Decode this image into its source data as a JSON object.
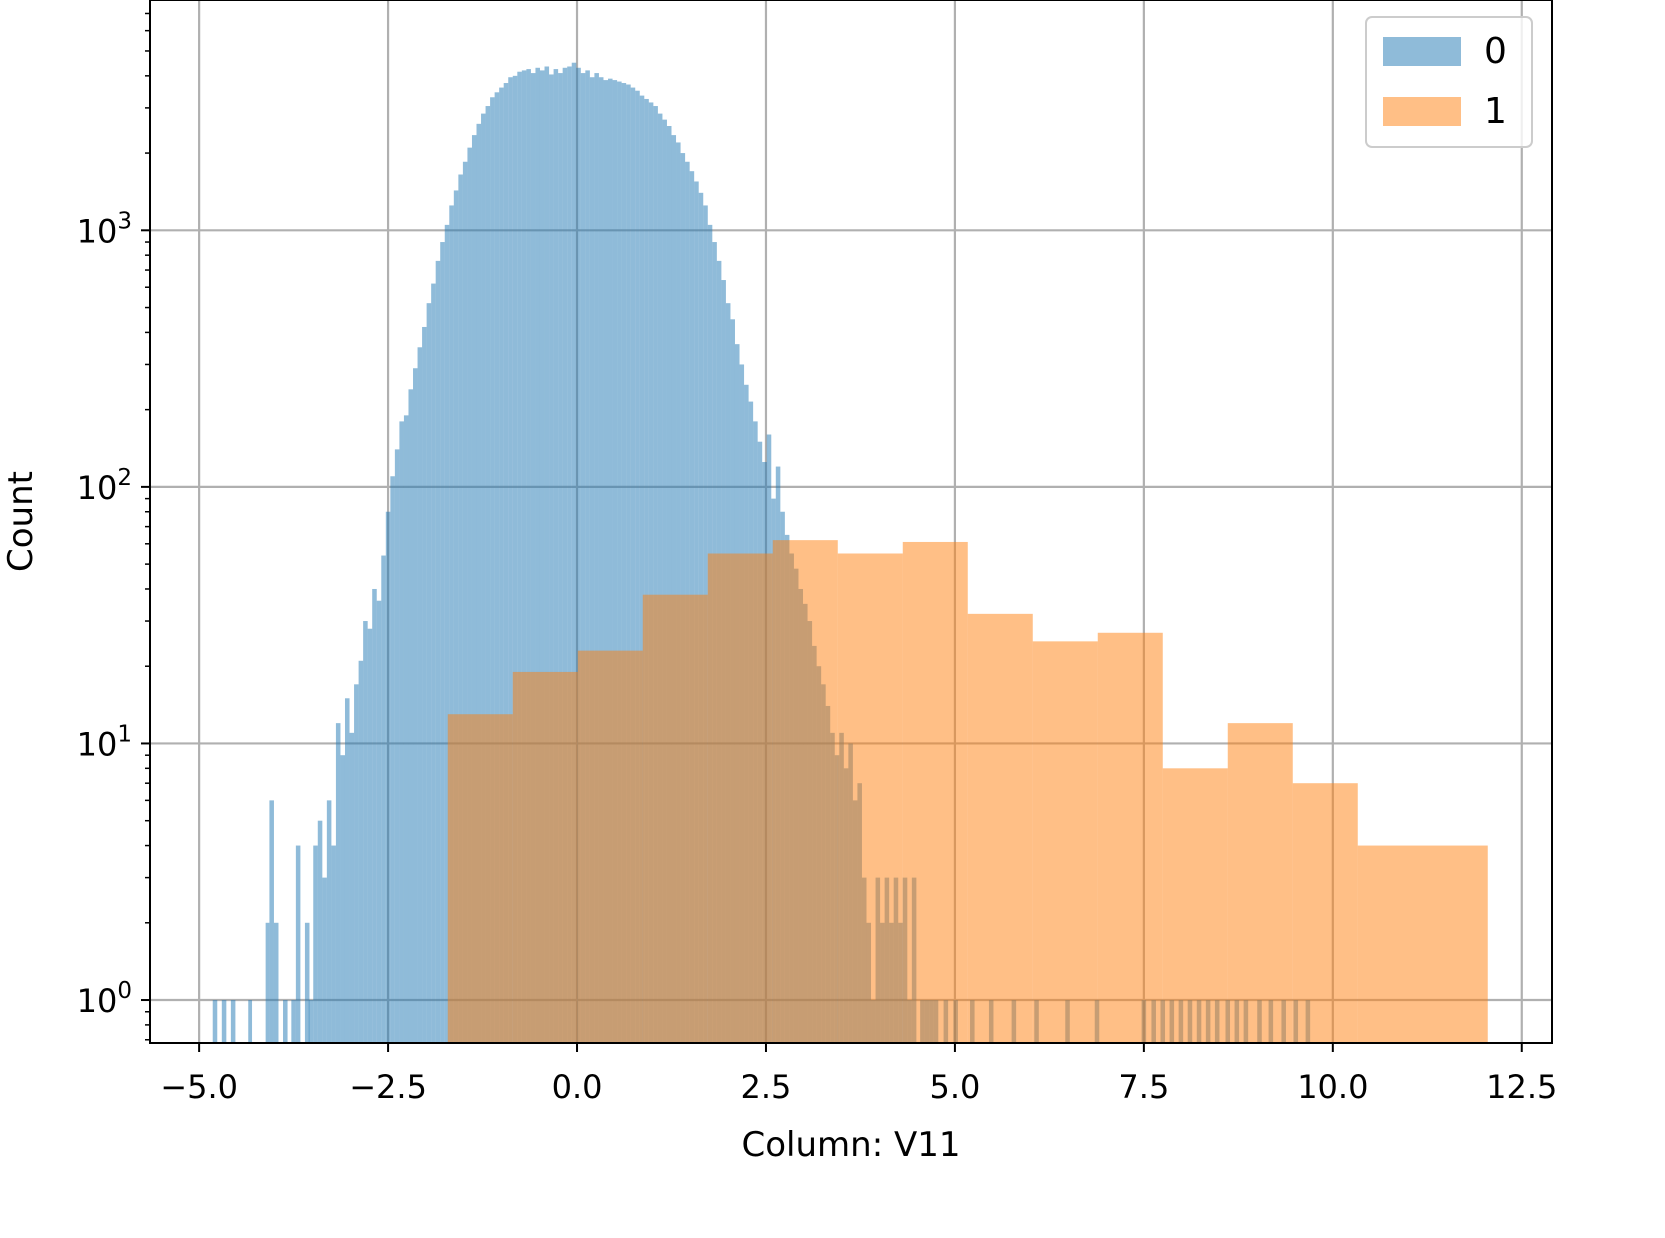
{
  "chart_data": {
    "type": "histogram",
    "xlabel": "Column: V11",
    "ylabel": "Count",
    "xlim": [
      -5.65,
      12.9
    ],
    "ylim": [
      0.68,
      7900
    ],
    "yscale": "log",
    "grid": true,
    "legend_position": "top-right",
    "x_ticks": [
      -5.0,
      -2.5,
      0.0,
      2.5,
      5.0,
      7.5,
      10.0,
      12.5
    ],
    "x_tick_labels": [
      "−5.0",
      "−2.5",
      "0.0",
      "2.5",
      "5.0",
      "7.5",
      "10.0",
      "12.5"
    ],
    "y_ticks": [
      1,
      10,
      100,
      1000
    ],
    "y_tick_labels": [
      {
        "base": "10",
        "exp": "0"
      },
      {
        "base": "10",
        "exp": "1"
      },
      {
        "base": "10",
        "exp": "2"
      },
      {
        "base": "10",
        "exp": "3"
      }
    ],
    "series": [
      {
        "name": "0",
        "color": "#1f77b4",
        "opacity": 0.5,
        "bins": [
          [
            -4.82,
            -4.76,
            1
          ],
          [
            -4.7,
            -4.64,
            1
          ],
          [
            -4.58,
            -4.52,
            1
          ],
          [
            -4.35,
            -4.3,
            1
          ],
          [
            -4.12,
            -4.07,
            2
          ],
          [
            -4.07,
            -4.01,
            6
          ],
          [
            -4.01,
            -3.95,
            2
          ],
          [
            -3.89,
            -3.83,
            1
          ],
          [
            -3.78,
            -3.72,
            1
          ],
          [
            -3.72,
            -3.66,
            4
          ],
          [
            -3.6,
            -3.54,
            2
          ],
          [
            -3.55,
            -3.49,
            1
          ],
          [
            -3.49,
            -3.43,
            4
          ],
          [
            -3.43,
            -3.37,
            5
          ],
          [
            -3.37,
            -3.31,
            3
          ],
          [
            -3.31,
            -3.25,
            6
          ],
          [
            -3.25,
            -3.19,
            4
          ],
          [
            -3.19,
            -3.13,
            12
          ],
          [
            -3.13,
            -3.07,
            9
          ],
          [
            -3.07,
            -3.01,
            15
          ],
          [
            -3.01,
            -2.95,
            11
          ],
          [
            -2.95,
            -2.89,
            17
          ],
          [
            -2.89,
            -2.83,
            21
          ],
          [
            -2.83,
            -2.77,
            30
          ],
          [
            -2.77,
            -2.71,
            28
          ],
          [
            -2.71,
            -2.65,
            40
          ],
          [
            -2.65,
            -2.59,
            36
          ],
          [
            -2.59,
            -2.53,
            54
          ],
          [
            -2.53,
            -2.47,
            80
          ],
          [
            -2.47,
            -2.41,
            110
          ],
          [
            -2.41,
            -2.35,
            140
          ],
          [
            -2.35,
            -2.29,
            180
          ],
          [
            -2.29,
            -2.23,
            190
          ],
          [
            -2.23,
            -2.17,
            240
          ],
          [
            -2.17,
            -2.11,
            290
          ],
          [
            -2.11,
            -2.05,
            350
          ],
          [
            -2.05,
            -1.99,
            420
          ],
          [
            -1.99,
            -1.93,
            520
          ],
          [
            -1.93,
            -1.87,
            620
          ],
          [
            -1.87,
            -1.81,
            760
          ],
          [
            -1.81,
            -1.75,
            900
          ],
          [
            -1.75,
            -1.69,
            1050
          ],
          [
            -1.69,
            -1.63,
            1250
          ],
          [
            -1.63,
            -1.57,
            1430
          ],
          [
            -1.57,
            -1.51,
            1650
          ],
          [
            -1.51,
            -1.45,
            1850
          ],
          [
            -1.45,
            -1.39,
            2100
          ],
          [
            -1.39,
            -1.33,
            2350
          ],
          [
            -1.33,
            -1.27,
            2600
          ],
          [
            -1.27,
            -1.21,
            2850
          ],
          [
            -1.21,
            -1.15,
            3050
          ],
          [
            -1.15,
            -1.09,
            3300
          ],
          [
            -1.09,
            -1.03,
            3450
          ],
          [
            -1.03,
            -0.97,
            3600
          ],
          [
            -0.97,
            -0.91,
            3750
          ],
          [
            -0.91,
            -0.85,
            3950
          ],
          [
            -0.85,
            -0.79,
            4000
          ],
          [
            -0.79,
            -0.73,
            4150
          ],
          [
            -0.73,
            -0.67,
            4200
          ],
          [
            -0.67,
            -0.61,
            4250
          ],
          [
            -0.61,
            -0.55,
            4100
          ],
          [
            -0.55,
            -0.49,
            4300
          ],
          [
            -0.49,
            -0.43,
            4200
          ],
          [
            -0.43,
            -0.37,
            4350
          ],
          [
            -0.37,
            -0.31,
            4050
          ],
          [
            -0.31,
            -0.25,
            4250
          ],
          [
            -0.25,
            -0.19,
            4100
          ],
          [
            -0.19,
            -0.13,
            4300
          ],
          [
            -0.13,
            -0.07,
            4350
          ],
          [
            -0.07,
            -0.01,
            4500
          ],
          [
            -0.01,
            0.05,
            4300
          ],
          [
            0.05,
            0.11,
            4100
          ],
          [
            0.11,
            0.17,
            4200
          ],
          [
            0.17,
            0.23,
            3950
          ],
          [
            0.23,
            0.29,
            4100
          ],
          [
            0.29,
            0.35,
            3950
          ],
          [
            0.35,
            0.41,
            3850
          ],
          [
            0.41,
            0.47,
            3900
          ],
          [
            0.47,
            0.53,
            3850
          ],
          [
            0.53,
            0.59,
            3800
          ],
          [
            0.59,
            0.65,
            3750
          ],
          [
            0.65,
            0.71,
            3700
          ],
          [
            0.71,
            0.77,
            3600
          ],
          [
            0.77,
            0.83,
            3500
          ],
          [
            0.83,
            0.89,
            3350
          ],
          [
            0.89,
            0.95,
            3250
          ],
          [
            0.95,
            1.01,
            3150
          ],
          [
            1.01,
            1.07,
            3050
          ],
          [
            1.07,
            1.13,
            2850
          ],
          [
            1.13,
            1.19,
            2700
          ],
          [
            1.19,
            1.25,
            2550
          ],
          [
            1.25,
            1.31,
            2350
          ],
          [
            1.31,
            1.37,
            2200
          ],
          [
            1.37,
            1.43,
            2000
          ],
          [
            1.43,
            1.49,
            1850
          ],
          [
            1.49,
            1.55,
            1700
          ],
          [
            1.55,
            1.61,
            1550
          ],
          [
            1.61,
            1.67,
            1400
          ],
          [
            1.67,
            1.73,
            1250
          ],
          [
            1.73,
            1.79,
            1050
          ],
          [
            1.79,
            1.85,
            900
          ],
          [
            1.85,
            1.91,
            760
          ],
          [
            1.91,
            1.97,
            640
          ],
          [
            1.97,
            2.03,
            520
          ],
          [
            2.03,
            2.09,
            450
          ],
          [
            2.09,
            2.15,
            360
          ],
          [
            2.15,
            2.21,
            300
          ],
          [
            2.21,
            2.27,
            250
          ],
          [
            2.27,
            2.33,
            215
          ],
          [
            2.33,
            2.39,
            180
          ],
          [
            2.39,
            2.45,
            150
          ],
          [
            2.45,
            2.51,
            125
          ],
          [
            2.51,
            2.57,
            160
          ],
          [
            2.57,
            2.63,
            90
          ],
          [
            2.63,
            2.69,
            120
          ],
          [
            2.69,
            2.75,
            80
          ],
          [
            2.75,
            2.81,
            65
          ],
          [
            2.81,
            2.87,
            55
          ],
          [
            2.87,
            2.93,
            48
          ],
          [
            2.93,
            2.99,
            40
          ],
          [
            2.99,
            3.05,
            35
          ],
          [
            3.05,
            3.11,
            30
          ],
          [
            3.11,
            3.17,
            24
          ],
          [
            3.17,
            3.23,
            20
          ],
          [
            3.23,
            3.29,
            17
          ],
          [
            3.29,
            3.35,
            14
          ],
          [
            3.35,
            3.41,
            11
          ],
          [
            3.41,
            3.47,
            9
          ],
          [
            3.47,
            3.53,
            11
          ],
          [
            3.53,
            3.59,
            8
          ],
          [
            3.59,
            3.65,
            10
          ],
          [
            3.65,
            3.71,
            6
          ],
          [
            3.71,
            3.77,
            7
          ],
          [
            3.77,
            3.83,
            3
          ],
          [
            3.83,
            3.89,
            2
          ],
          [
            3.89,
            3.95,
            1
          ],
          [
            3.95,
            4.01,
            3
          ],
          [
            4.01,
            4.07,
            2
          ],
          [
            4.07,
            4.13,
            3
          ],
          [
            4.13,
            4.19,
            2
          ],
          [
            4.19,
            4.25,
            3
          ],
          [
            4.25,
            4.31,
            2
          ],
          [
            4.31,
            4.37,
            3
          ],
          [
            4.37,
            4.43,
            1
          ],
          [
            4.43,
            4.49,
            3
          ],
          [
            4.54,
            4.6,
            1
          ],
          [
            4.6,
            4.66,
            1
          ],
          [
            4.66,
            4.72,
            1
          ],
          [
            4.72,
            4.78,
            1
          ],
          [
            4.85,
            4.91,
            1
          ],
          [
            4.98,
            5.04,
            1
          ],
          [
            5.2,
            5.26,
            1
          ],
          [
            5.45,
            5.51,
            1
          ],
          [
            5.75,
            5.81,
            1
          ],
          [
            6.05,
            6.11,
            1
          ],
          [
            6.46,
            6.52,
            1
          ],
          [
            6.85,
            6.91,
            1
          ],
          [
            7.47,
            7.53,
            1
          ],
          [
            7.6,
            7.66,
            1
          ],
          [
            7.72,
            7.78,
            1
          ],
          [
            7.84,
            7.9,
            1
          ],
          [
            7.96,
            8.02,
            1
          ],
          [
            8.08,
            8.14,
            1
          ],
          [
            8.2,
            8.26,
            1
          ],
          [
            8.32,
            8.38,
            1
          ],
          [
            8.44,
            8.5,
            1
          ],
          [
            8.58,
            8.64,
            1
          ],
          [
            8.7,
            8.76,
            1
          ],
          [
            8.82,
            8.88,
            1
          ],
          [
            9.0,
            9.06,
            1
          ],
          [
            9.15,
            9.21,
            1
          ],
          [
            9.32,
            9.38,
            1
          ],
          [
            9.48,
            9.54,
            1
          ],
          [
            9.64,
            9.7,
            1
          ]
        ]
      },
      {
        "name": "1",
        "color": "#ff7f0e",
        "opacity": 0.5,
        "bins": [
          [
            -1.71,
            -0.85,
            13
          ],
          [
            -0.85,
            0.01,
            19
          ],
          [
            0.01,
            0.87,
            23
          ],
          [
            0.87,
            1.73,
            38
          ],
          [
            1.73,
            2.59,
            55
          ],
          [
            2.59,
            3.45,
            62
          ],
          [
            3.45,
            4.31,
            55
          ],
          [
            4.31,
            5.17,
            61
          ],
          [
            5.17,
            6.03,
            32
          ],
          [
            6.03,
            6.89,
            25
          ],
          [
            6.89,
            7.75,
            27
          ],
          [
            7.75,
            8.61,
            8
          ],
          [
            8.61,
            9.47,
            12
          ],
          [
            9.47,
            10.33,
            7
          ],
          [
            10.33,
            12.05,
            4
          ]
        ]
      }
    ]
  }
}
